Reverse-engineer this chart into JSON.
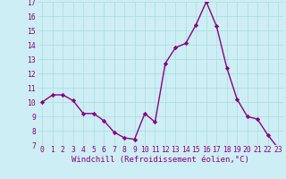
{
  "x": [
    0,
    1,
    2,
    3,
    4,
    5,
    6,
    7,
    8,
    9,
    10,
    11,
    12,
    13,
    14,
    15,
    16,
    17,
    18,
    19,
    20,
    21,
    22,
    23
  ],
  "y": [
    10.0,
    10.5,
    10.5,
    10.1,
    9.2,
    9.2,
    8.7,
    7.9,
    7.5,
    7.4,
    9.2,
    8.6,
    12.7,
    13.8,
    14.1,
    15.4,
    17.0,
    15.3,
    12.4,
    10.2,
    9.0,
    8.8,
    7.7,
    6.8
  ],
  "ylim": [
    7,
    17
  ],
  "yticks": [
    7,
    8,
    9,
    10,
    11,
    12,
    13,
    14,
    15,
    16,
    17
  ],
  "xticks": [
    0,
    1,
    2,
    3,
    4,
    5,
    6,
    7,
    8,
    9,
    10,
    11,
    12,
    13,
    14,
    15,
    16,
    17,
    18,
    19,
    20,
    21,
    22,
    23
  ],
  "line_color": "#880088",
  "marker": "D",
  "marker_size": 2.2,
  "line_width": 1.0,
  "bg_color": "#CDEEF4",
  "grid_color": "#AADDE0",
  "xlabel": "Windchill (Refroidissement éolien,°C)",
  "xlabel_fontsize": 6.5,
  "tick_fontsize": 5.8,
  "xlim": [
    -0.5,
    23.5
  ]
}
